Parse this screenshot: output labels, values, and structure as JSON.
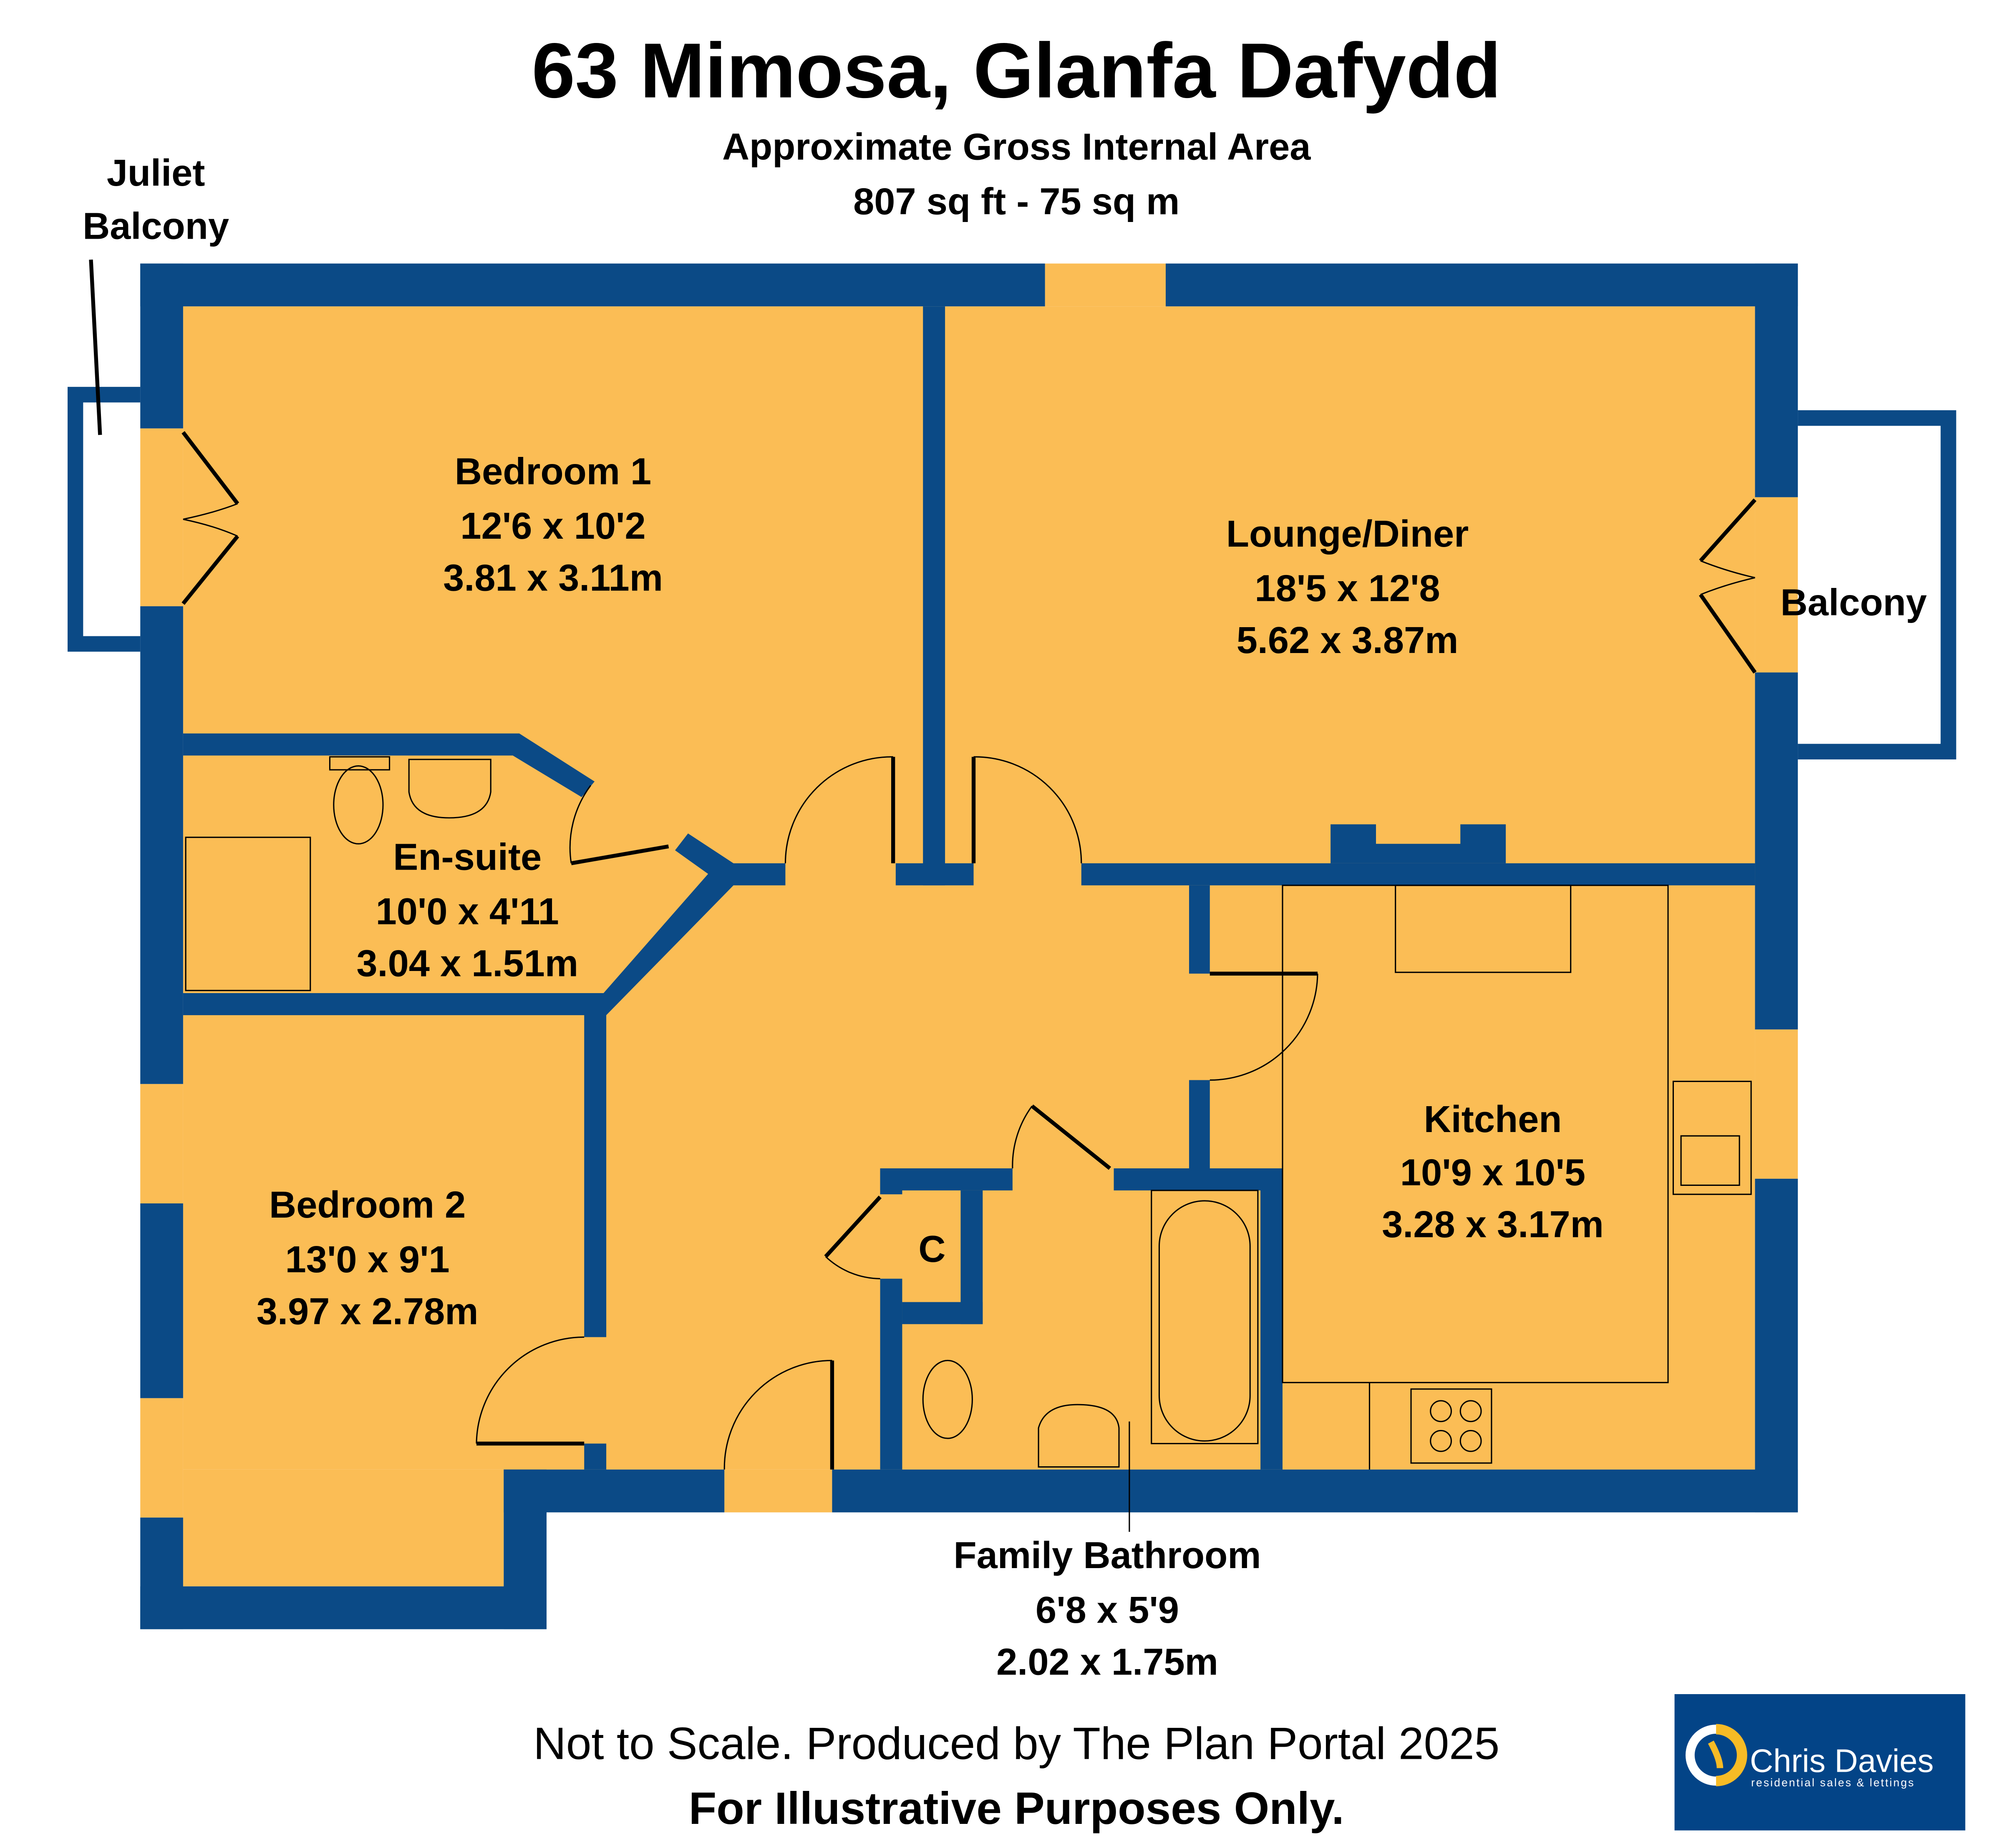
{
  "header": {
    "title": "63 Mimosa, Glanfa Dafydd",
    "subtitle": "Approximate Gross Internal Area",
    "area": "807 sq ft - 75 sq m"
  },
  "rooms": [
    {
      "name": "Bedroom 1",
      "imperial": "12'6 x 10'2",
      "metric": "3.81 x 3.11m"
    },
    {
      "name": "Lounge/Diner",
      "imperial": "18'5 x 12'8",
      "metric": "5.62 x 3.87m"
    },
    {
      "name": "En-suite",
      "imperial": "10'0 x 4'11",
      "metric": "3.04 x 1.51m"
    },
    {
      "name": "Kitchen",
      "imperial": "10'9 x 10'5",
      "metric": "3.28 x 3.17m"
    },
    {
      "name": "Bedroom 2",
      "imperial": "13'0 x 9'1",
      "metric": "3.97 x 2.78m"
    },
    {
      "name": "Family Bathroom",
      "imperial": "6'8 x 5'9",
      "metric": "2.02 x 1.75m"
    }
  ],
  "labels": {
    "juliet_line1": "Juliet",
    "juliet_line2": "Balcony",
    "balcony": "Balcony",
    "cupboard": "C"
  },
  "footer": {
    "note": "Not to Scale. Produced by The Plan Portal 2025",
    "disclaimer": "For Illustrative Purposes Only."
  },
  "logo": {
    "name": "Chris Davies",
    "tagline": "residential sales & lettings",
    "bg_color": "#034487",
    "accent_color": "#f7bb25"
  },
  "colors": {
    "wall": "#0b4a86",
    "room": "#fbbd55"
  }
}
